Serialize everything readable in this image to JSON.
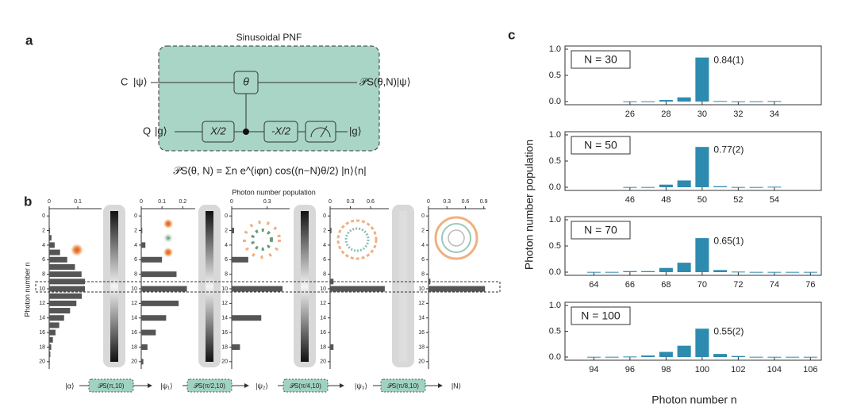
{
  "panel_labels": [
    "a",
    "b",
    "c"
  ],
  "circuit": {
    "title": "Sinusoidal PNF",
    "control_label": "C",
    "control_state": "|ψ⟩",
    "qubit_label": "Q",
    "qubit_state": "|g⟩",
    "gates": [
      "θ",
      "X/2",
      "-X/2"
    ],
    "qubit_out": "|g⟩",
    "output": "𝒫S(θ,N)|ψ⟩",
    "equation": "𝒫S(θ, N) = Σn e^(iφn) cos((n−N)θ/2) |n⟩⟨n|"
  },
  "panel_b": {
    "x_label": "Photon number population",
    "y_label": "Photon number n",
    "states": [
      "|α⟩",
      "|ψ₁⟩",
      "|ψ₂⟩",
      "|ψ₃⟩",
      "|N⟩"
    ],
    "operations": [
      "𝒫S(π,10)",
      "𝒫S(π/2,10)",
      "𝒫S(π/4,10)",
      "𝒫S(π/8,10)"
    ]
  },
  "panel_c": {
    "y_label": "Photon number population",
    "x_label": "Photon number n"
  },
  "chart_data": [
    {
      "type": "hbar",
      "color": "#555555",
      "y": [
        0,
        1,
        2,
        3,
        4,
        5,
        6,
        7,
        8,
        9,
        10,
        11,
        12,
        13,
        14,
        15,
        16,
        17,
        18,
        19,
        20
      ],
      "values": [
        0,
        0,
        0.003,
        0.008,
        0.019,
        0.038,
        0.063,
        0.09,
        0.113,
        0.125,
        0.125,
        0.114,
        0.095,
        0.073,
        0.052,
        0.035,
        0.022,
        0.013,
        0.007,
        0.004,
        0.002
      ],
      "xlim": [
        0,
        0.183
      ],
      "xticks": [
        0,
        0.1
      ],
      "ylim": [
        -1,
        21
      ],
      "yticks": [
        0,
        2,
        4,
        6,
        8,
        10,
        12,
        14,
        16,
        18,
        20
      ]
    },
    {
      "type": "hbar",
      "color": "#555555",
      "y": [
        2,
        4,
        6,
        8,
        10,
        12,
        14,
        16,
        18,
        20
      ],
      "values": [
        0.005,
        0.02,
        0.1,
        0.17,
        0.22,
        0.18,
        0.12,
        0.07,
        0.03,
        0.01
      ],
      "xlim": [
        0,
        0.26
      ],
      "xticks": [
        0,
        0.1,
        0.2
      ],
      "ylim": [
        -1,
        21
      ],
      "yticks": [
        0,
        2,
        4,
        6,
        8,
        10,
        12,
        14,
        16,
        18,
        20
      ]
    },
    {
      "type": "hbar",
      "color": "#555555",
      "y": [
        2,
        6,
        10,
        14,
        18
      ],
      "values": [
        0.02,
        0.14,
        0.43,
        0.25,
        0.07
      ],
      "xlim": [
        0,
        0.49
      ],
      "xticks": [
        0,
        0.3
      ],
      "ylim": [
        -1,
        21
      ],
      "yticks": [
        0,
        2,
        4,
        6,
        8,
        10,
        12,
        14,
        16,
        18,
        20
      ]
    },
    {
      "type": "hbar",
      "color": "#555555",
      "y": [
        2,
        9,
        10,
        18
      ],
      "values": [
        0.02,
        0.05,
        0.81,
        0.05
      ],
      "xlim": [
        0,
        0.87
      ],
      "xticks": [
        0,
        0.3,
        0.6
      ],
      "ylim": [
        -1,
        21
      ],
      "yticks": [
        0,
        2,
        4,
        6,
        8,
        10,
        12,
        14,
        16,
        18,
        20
      ]
    },
    {
      "type": "hbar",
      "color": "#555555",
      "y": [
        9,
        10
      ],
      "values": [
        0.03,
        0.92
      ],
      "xlim": [
        0,
        0.93
      ],
      "xticks": [
        0,
        0.3,
        0.6,
        0.9
      ],
      "ylim": [
        -1,
        21
      ],
      "yticks": [
        0,
        2,
        4,
        6,
        8,
        10,
        12,
        14,
        16,
        18,
        20
      ]
    },
    {
      "type": "bar",
      "title": "N = 30",
      "annotation": "0.84(1)",
      "color": "#2e8bb0",
      "x": [
        26,
        27,
        28,
        29,
        30,
        31,
        32,
        33,
        34
      ],
      "values": [
        0.005,
        0.005,
        0.03,
        0.08,
        0.84,
        0.01,
        0.005,
        0.005,
        0.01
      ],
      "xlim": [
        22.4,
        36.6
      ],
      "xticks": [
        26,
        28,
        30,
        32,
        34
      ],
      "ylim": [
        0,
        1
      ],
      "yticks": [
        {
          "value": 0,
          "label": "0.0"
        },
        0.5,
        {
          "value": 1,
          "label": "1.0"
        }
      ]
    },
    {
      "type": "bar",
      "title": "N = 50",
      "annotation": "0.77(2)",
      "color": "#2e8bb0",
      "x": [
        46,
        47,
        48,
        49,
        50,
        51,
        52,
        53,
        54
      ],
      "values": [
        0.005,
        0.005,
        0.05,
        0.13,
        0.77,
        0.02,
        0.005,
        0.005,
        0.01
      ],
      "xlim": [
        42.4,
        56.6
      ],
      "xticks": [
        46,
        48,
        50,
        52,
        54
      ],
      "ylim": [
        0,
        1
      ],
      "yticks": [
        {
          "value": 0,
          "label": "0.0"
        },
        0.5,
        {
          "value": 1,
          "label": "1.0"
        }
      ]
    },
    {
      "type": "bar",
      "title": "N = 70",
      "annotation": "0.65(1)",
      "color": "#2e8bb0",
      "x": [
        64,
        65,
        66,
        67,
        68,
        69,
        70,
        71,
        72,
        73,
        74,
        75,
        76
      ],
      "values": [
        0.005,
        0.005,
        0.02,
        0.02,
        0.08,
        0.18,
        0.65,
        0.04,
        0.01,
        0.005,
        0.005,
        0.005,
        0.005
      ],
      "xlim": [
        62.4,
        76.6
      ],
      "xticks": [
        64,
        66,
        68,
        70,
        72,
        74,
        76
      ],
      "ylim": [
        0,
        1
      ],
      "yticks": [
        {
          "value": 0,
          "label": "0.0"
        },
        0.5,
        {
          "value": 1,
          "label": "1.0"
        }
      ]
    },
    {
      "type": "bar",
      "title": "N = 100",
      "annotation": "0.55(2)",
      "color": "#2e8bb0",
      "x": [
        94,
        95,
        96,
        97,
        98,
        99,
        100,
        101,
        102,
        103,
        104,
        105,
        106
      ],
      "values": [
        0.005,
        0.005,
        0.01,
        0.03,
        0.1,
        0.22,
        0.55,
        0.06,
        0.02,
        0.005,
        0.005,
        0.005,
        0.005
      ],
      "xlim": [
        92.4,
        106.6
      ],
      "xticks": [
        94,
        96,
        98,
        100,
        102,
        104,
        106
      ],
      "ylim": [
        0,
        1
      ],
      "yticks": [
        {
          "value": 0,
          "label": "0.0"
        },
        0.5,
        {
          "value": 1,
          "label": "1.0"
        }
      ]
    }
  ]
}
